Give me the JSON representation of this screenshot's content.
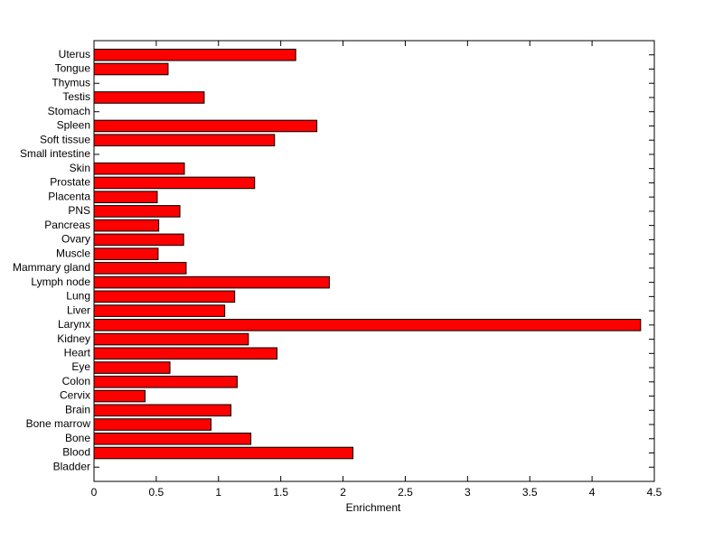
{
  "chart_data": {
    "type": "barh",
    "xlabel": "Enrichment",
    "categories": [
      "Bladder",
      "Blood",
      "Bone",
      "Bone marrow",
      "Brain",
      "Cervix",
      "Colon",
      "Eye",
      "Heart",
      "Kidney",
      "Larynx",
      "Liver",
      "Lung",
      "Lymph node",
      "Mammary gland",
      "Muscle",
      "Ovary",
      "Pancreas",
      "PNS",
      "Placenta",
      "Prostate",
      "Skin",
      "Small intestine",
      "Soft tissue",
      "Spleen",
      "Stomach",
      "Testis",
      "Thymus",
      "Tongue",
      "Uterus"
    ],
    "values": [
      0,
      2.08,
      1.26,
      0.94,
      1.1,
      0.41,
      1.15,
      0.61,
      1.47,
      1.24,
      4.39,
      1.05,
      1.13,
      1.89,
      0.74,
      0.515,
      0.72,
      0.52,
      0.69,
      0.508,
      1.29,
      0.726,
      0,
      1.45,
      1.79,
      0,
      0.885,
      0,
      0.595,
      1.62
    ],
    "color": "#ff0000",
    "xlim": [
      0,
      4.5
    ],
    "xticks": [
      0,
      0.5,
      1,
      1.5,
      2,
      2.5,
      3,
      3.5,
      4,
      4.5
    ]
  }
}
